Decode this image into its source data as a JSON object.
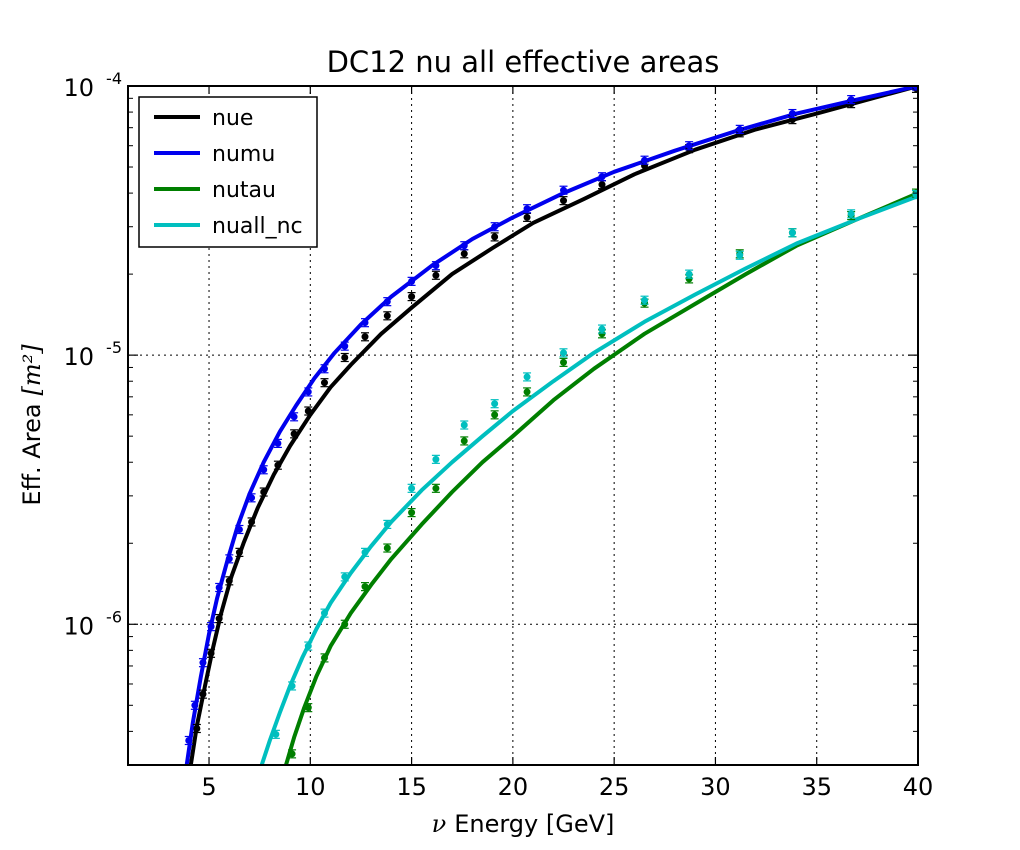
{
  "chart_data": {
    "type": "line",
    "title": "DC12 nu all effective areas",
    "xlabel_symbol": "ν",
    "xlabel": "Energy [GeV]",
    "ylabel_text": "Eff. Area",
    "ylabel_unit": "[m²]",
    "xlim": [
      1,
      40
    ],
    "ylim": [
      3e-07,
      0.0001
    ],
    "yscale": "log",
    "grid": true,
    "legend_position": "top-left",
    "x_ticks": [
      5,
      10,
      15,
      20,
      25,
      30,
      35,
      40
    ],
    "x_tick_labels": [
      "5",
      "10",
      "15",
      "20",
      "25",
      "30",
      "35",
      "40"
    ],
    "y_major_ticks": [
      1e-06,
      1e-05,
      0.0001
    ],
    "y_tick_labels": [
      {
        "base": "10",
        "exp": "-6"
      },
      {
        "base": "10",
        "exp": "-5"
      },
      {
        "base": "10",
        "exp": "-4"
      }
    ],
    "series": [
      {
        "name": "nue",
        "color": "#000000",
        "curve": {
          "x": [
            4.1,
            4.4,
            4.8,
            5.2,
            5.6,
            6.1,
            6.7,
            7.4,
            8.2,
            9.0,
            10.0,
            11.0,
            12.0,
            13.5,
            15.0,
            17.0,
            19.0,
            21.0,
            23.5,
            26.0,
            29.0,
            32.0,
            35.0,
            38.0,
            40.0
          ],
          "y": [
            3e-07,
            4.2e-07,
            5.9e-07,
            8.2e-07,
            1.1e-06,
            1.5e-06,
            2e-06,
            2.7e-06,
            3.6e-06,
            4.6e-06,
            6e-06,
            7.6e-06,
            9.2e-06,
            1.2e-05,
            1.5e-05,
            2e-05,
            2.5e-05,
            3.1e-05,
            3.8e-05,
            4.7e-05,
            5.8e-05,
            6.9e-05,
            7.9e-05,
            9.1e-05,
            0.0001
          ]
        },
        "points": {
          "x": [
            4.4,
            4.7,
            5.1,
            5.5,
            6.0,
            6.5,
            7.1,
            7.7,
            8.4,
            9.2,
            9.9,
            10.7,
            11.7,
            12.7,
            13.8,
            15.0,
            16.2,
            17.6,
            19.1,
            20.7,
            22.5,
            24.4,
            26.5,
            28.7,
            31.2,
            33.8,
            36.7,
            39.9
          ],
          "y": [
            4.1e-07,
            5.5e-07,
            7.8e-07,
            1.05e-06,
            1.45e-06,
            1.85e-06,
            2.4e-06,
            3.1e-06,
            3.9e-06,
            5.1e-06,
            6.2e-06,
            7.9e-06,
            9.8e-06,
            1.17e-05,
            1.4e-05,
            1.65e-05,
            1.98e-05,
            2.38e-05,
            2.75e-05,
            3.25e-05,
            3.75e-05,
            4.3e-05,
            5.05e-05,
            5.85e-05,
            6.7e-05,
            7.5e-05,
            8.6e-05,
            9.8e-05
          ]
        }
      },
      {
        "name": "numu",
        "color": "#0000ee",
        "curve": {
          "x": [
            3.9,
            4.2,
            4.6,
            5.0,
            5.4,
            5.9,
            6.4,
            7.0,
            7.7,
            8.5,
            9.3,
            10.2,
            11.2,
            12.5,
            14.0,
            16.0,
            18.0,
            20.0,
            22.5,
            25.0,
            28.0,
            31.0,
            34.0,
            37.0,
            40.0
          ],
          "y": [
            3e-07,
            4.3e-07,
            6.4e-07,
            9.2e-07,
            1.25e-06,
            1.72e-06,
            2.3e-06,
            3.05e-06,
            4e-06,
            5.2e-06,
            6.5e-06,
            8.2e-06,
            1.02e-05,
            1.3e-05,
            1.65e-05,
            2.15e-05,
            2.7e-05,
            3.25e-05,
            4e-05,
            4.8e-05,
            5.75e-05,
            6.8e-05,
            7.9e-05,
            8.9e-05,
            0.0001
          ]
        },
        "points": {
          "x": [
            4.0,
            4.3,
            4.7,
            5.1,
            5.5,
            6.0,
            6.5,
            7.1,
            7.7,
            8.4,
            9.2,
            9.9,
            10.7,
            11.7,
            12.7,
            13.8,
            15.0,
            16.2,
            17.6,
            19.1,
            20.7,
            22.5,
            24.4,
            26.5,
            28.7,
            31.2,
            33.8,
            36.7,
            39.9
          ],
          "y": [
            3.7e-07,
            5e-07,
            7.2e-07,
            9.8e-07,
            1.37e-06,
            1.75e-06,
            2.25e-06,
            2.95e-06,
            3.75e-06,
            4.7e-06,
            5.9e-06,
            7.3e-06,
            8.9e-06,
            1.08e-05,
            1.32e-05,
            1.58e-05,
            1.88e-05,
            2.15e-05,
            2.55e-05,
            3e-05,
            3.5e-05,
            4.1e-05,
            4.6e-05,
            5.3e-05,
            6e-05,
            6.9e-05,
            7.9e-05,
            8.9e-05,
            0.0001
          ]
        }
      },
      {
        "name": "nutau",
        "color": "#007f00",
        "curve": {
          "x": [
            8.8,
            9.2,
            9.7,
            10.3,
            11.0,
            12.0,
            13.0,
            14.0,
            15.5,
            17.0,
            18.5,
            20.0,
            22.0,
            24.0,
            26.5,
            29.0,
            31.5,
            34.0,
            37.0,
            40.0
          ],
          "y": [
            3e-07,
            3.8e-07,
            4.9e-07,
            6.4e-07,
            8.3e-07,
            1.1e-06,
            1.4e-06,
            1.75e-06,
            2.35e-06,
            3.1e-06,
            4e-06,
            5e-06,
            6.8e-06,
            8.9e-06,
            1.2e-05,
            1.55e-05,
            2e-05,
            2.55e-05,
            3.2e-05,
            4e-05
          ]
        },
        "points": {
          "x": [
            9.1,
            9.9,
            10.7,
            11.7,
            12.7,
            13.8,
            15.0,
            16.2,
            17.6,
            19.1,
            20.7,
            22.5,
            24.4,
            26.5,
            28.7,
            31.2,
            33.8,
            36.7,
            39.9
          ],
          "y": [
            3.3e-07,
            4.9e-07,
            7.5e-07,
            1e-06,
            1.38e-06,
            1.92e-06,
            2.6e-06,
            3.2e-06,
            4.8e-06,
            6e-06,
            7.3e-06,
            9.4e-06,
            1.2e-05,
            1.56e-05,
            1.92e-05,
            2.38e-05,
            2.85e-05,
            3.3e-05,
            4e-05
          ]
        }
      },
      {
        "name": "nuall_nc",
        "color": "#00bfbf",
        "curve": {
          "x": [
            7.6,
            8.0,
            8.5,
            9.0,
            9.6,
            10.3,
            11.0,
            12.0,
            13.0,
            14.0,
            15.5,
            17.0,
            18.5,
            20.0,
            22.0,
            24.0,
            26.5,
            29.0,
            31.5,
            34.0,
            37.0,
            40.0
          ],
          "y": [
            3e-07,
            3.7e-07,
            4.7e-07,
            5.9e-07,
            7.5e-07,
            9.6e-07,
            1.2e-06,
            1.55e-06,
            1.95e-06,
            2.4e-06,
            3.15e-06,
            4e-06,
            5e-06,
            6.2e-06,
            8e-06,
            1.02e-05,
            1.33e-05,
            1.68e-05,
            2.1e-05,
            2.6e-05,
            3.2e-05,
            3.9e-05
          ]
        },
        "points": {
          "x": [
            8.3,
            9.1,
            9.9,
            10.7,
            11.7,
            12.7,
            13.8,
            15.0,
            16.2,
            17.6,
            19.1,
            20.7,
            22.5,
            24.4,
            26.5,
            28.7,
            31.2,
            33.8,
            36.7,
            39.9
          ],
          "y": [
            3.9e-07,
            5.9e-07,
            8.3e-07,
            1.1e-06,
            1.5e-06,
            1.85e-06,
            2.35e-06,
            3.2e-06,
            4.1e-06,
            5.5e-06,
            6.6e-06,
            8.3e-06,
            1.02e-05,
            1.25e-05,
            1.6e-05,
            2e-05,
            2.35e-05,
            2.85e-05,
            3.35e-05,
            3.95e-05
          ]
        }
      }
    ]
  }
}
